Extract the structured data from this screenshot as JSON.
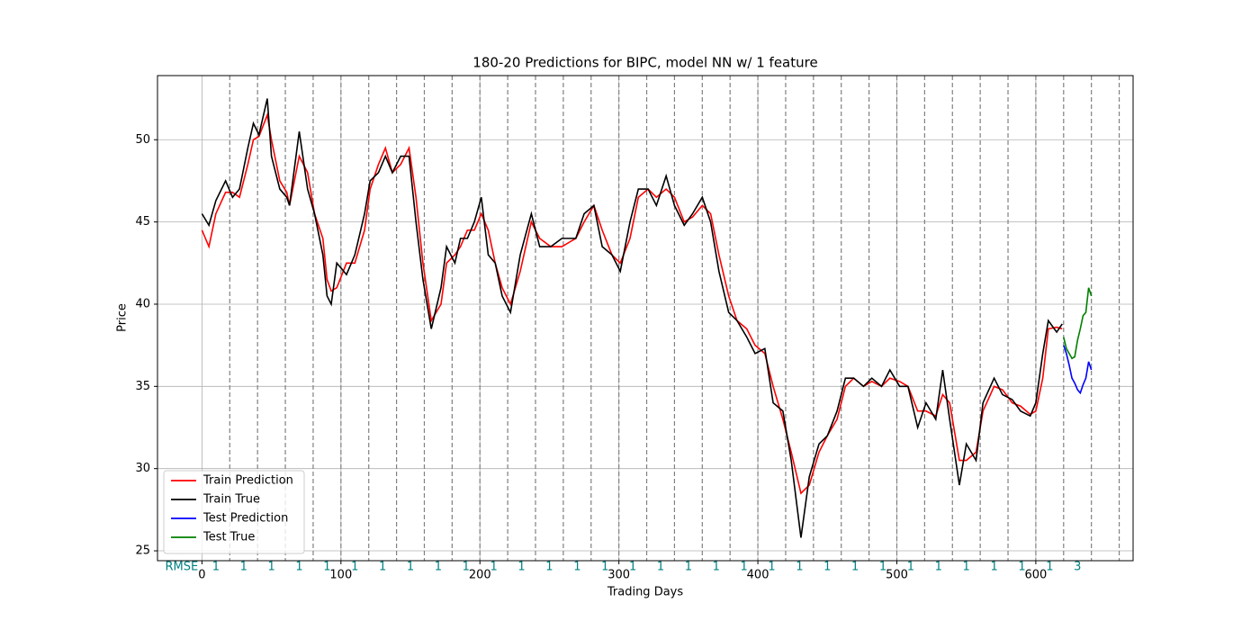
{
  "chart_data": {
    "type": "line",
    "title": "180-20 Predictions for BIPC, model NN w/ 1 feature",
    "xlabel": "Trading Days",
    "ylabel": "Price",
    "xlim": [
      -32,
      670
    ],
    "ylim": [
      24.4,
      53.9
    ],
    "xticks": [
      0,
      100,
      200,
      300,
      400,
      500,
      600
    ],
    "yticks": [
      25,
      30,
      35,
      40,
      45,
      50
    ],
    "grid": true,
    "legend": "lower left",
    "window_lines": [
      20,
      40,
      60,
      80,
      100,
      120,
      140,
      160,
      180,
      200,
      220,
      240,
      260,
      280,
      300,
      320,
      340,
      360,
      380,
      400,
      420,
      440,
      460,
      480,
      500,
      520,
      540,
      560,
      580,
      600,
      620,
      640,
      660
    ],
    "rmse": {
      "label": "RMSE",
      "x": [
        10,
        30,
        50,
        70,
        90,
        110,
        130,
        150,
        170,
        190,
        210,
        230,
        250,
        270,
        290,
        310,
        330,
        350,
        370,
        390,
        410,
        430,
        450,
        470,
        490,
        510,
        530,
        550,
        570,
        590,
        610,
        630
      ],
      "values": [
        1,
        1,
        1,
        1,
        1,
        1,
        1,
        1,
        1,
        1,
        1,
        1,
        1,
        1,
        1,
        1,
        1,
        1,
        1,
        1,
        1,
        1,
        1,
        1,
        1,
        1,
        1,
        1,
        1,
        1,
        1,
        3
      ]
    },
    "series": [
      {
        "name": "Train Prediction",
        "color": "#ff0000",
        "x": [
          0,
          5,
          10,
          17,
          22,
          27,
          33,
          37,
          41,
          47,
          50,
          56,
          61,
          63,
          70,
          76,
          81,
          87,
          90,
          93,
          97,
          104,
          110,
          117,
          121,
          127,
          132,
          137,
          143,
          149,
          154,
          159,
          165,
          172,
          176,
          182,
          186,
          191,
          196,
          201,
          206,
          211,
          216,
          222,
          229,
          237,
          243,
          251,
          259,
          269,
          275,
          282,
          288,
          295,
          301,
          308,
          314,
          321,
          327,
          334,
          340,
          347,
          353,
          360,
          366,
          372,
          379,
          385,
          392,
          398,
          405,
          411,
          418,
          424,
          431,
          437,
          444,
          450,
          457,
          463,
          469,
          476,
          482,
          489,
          495,
          502,
          508,
          515,
          521,
          528,
          533,
          538,
          545,
          550,
          557,
          562,
          570,
          576,
          583,
          589,
          596,
          600,
          605,
          609,
          615,
          619
        ],
        "values": [
          44.5,
          43.5,
          45.5,
          46.8,
          46.8,
          46.5,
          48.5,
          50,
          50.2,
          51.5,
          50,
          47.5,
          46.8,
          46,
          49,
          48,
          45.5,
          44,
          41.5,
          40.8,
          41,
          42.5,
          42.5,
          44.5,
          47,
          48.5,
          49.5,
          48,
          48.5,
          49.5,
          46.5,
          42.5,
          39,
          40,
          42.5,
          43,
          43.5,
          44.5,
          44.5,
          45.5,
          44.5,
          42.5,
          41,
          40,
          42,
          45,
          44,
          43.5,
          43.5,
          44,
          45,
          46,
          44.5,
          43,
          42.5,
          44,
          46.5,
          47,
          46.5,
          47,
          46.5,
          45,
          45.3,
          46,
          45.5,
          43,
          40.5,
          39,
          38.5,
          37.5,
          37,
          35,
          33,
          31,
          28.5,
          29,
          31,
          32,
          33,
          35,
          35.5,
          35,
          35.3,
          35,
          35.5,
          35.3,
          35,
          33.5,
          33.5,
          33.2,
          34.5,
          34,
          30.5,
          30.5,
          31,
          33.5,
          35,
          34.8,
          34,
          33.8,
          33.3,
          33.5,
          35.5,
          38.5,
          38.6,
          38.5
        ]
      },
      {
        "name": "Train True",
        "color": "#000000",
        "x": [
          0,
          5,
          10,
          17,
          22,
          27,
          33,
          37,
          41,
          47,
          50,
          56,
          61,
          63,
          70,
          76,
          81,
          87,
          90,
          93,
          97,
          104,
          110,
          117,
          121,
          127,
          132,
          137,
          143,
          149,
          154,
          159,
          165,
          172,
          176,
          182,
          186,
          191,
          196,
          201,
          206,
          211,
          216,
          222,
          229,
          237,
          243,
          251,
          259,
          269,
          275,
          282,
          288,
          295,
          301,
          308,
          314,
          321,
          327,
          334,
          340,
          347,
          353,
          360,
          366,
          372,
          379,
          385,
          392,
          398,
          405,
          411,
          418,
          424,
          431,
          437,
          444,
          450,
          457,
          463,
          469,
          476,
          482,
          489,
          495,
          502,
          508,
          515,
          521,
          528,
          533,
          538,
          545,
          550,
          557,
          562,
          570,
          576,
          583,
          589,
          596,
          600,
          605,
          609,
          615,
          619
        ],
        "values": [
          45.5,
          44.8,
          46.3,
          47.5,
          46.5,
          47,
          49.5,
          51,
          50.3,
          52.5,
          49,
          47,
          46.5,
          46,
          50.5,
          47,
          45.5,
          43,
          40.5,
          40,
          42.5,
          41.8,
          43,
          45.5,
          47.5,
          48,
          49,
          48,
          49,
          49,
          45,
          41.5,
          38.5,
          41,
          43.5,
          42.5,
          44,
          44,
          45,
          46.5,
          43,
          42.5,
          40.5,
          39.5,
          43,
          45.5,
          43.5,
          43.5,
          44,
          44,
          45.5,
          46,
          43.5,
          43,
          42,
          45,
          47,
          47,
          46,
          47.8,
          46,
          44.8,
          45.5,
          46.5,
          45,
          42,
          39.5,
          39,
          38,
          37,
          37.3,
          34,
          33.5,
          30.5,
          25.8,
          29.5,
          31.5,
          32,
          33.5,
          35.5,
          35.5,
          35,
          35.5,
          35,
          36,
          35,
          35,
          32.5,
          34,
          33,
          36,
          33,
          29,
          31.5,
          30.5,
          34,
          35.5,
          34.5,
          34.2,
          33.5,
          33.2,
          34,
          37,
          39,
          38.3,
          38.8
        ]
      },
      {
        "name": "Test Prediction",
        "color": "#0000ff",
        "x": [
          620,
          622,
          624,
          626,
          628,
          630,
          632,
          634,
          636,
          638,
          640
        ],
        "values": [
          37.5,
          37,
          36.3,
          35.5,
          35.2,
          34.8,
          34.6,
          35.1,
          35.5,
          36.5,
          36
        ]
      },
      {
        "name": "Test True",
        "color": "#008000",
        "x": [
          620,
          622,
          624,
          626,
          628,
          630,
          632,
          634,
          636,
          638,
          640
        ],
        "values": [
          38,
          37.3,
          37,
          36.7,
          36.8,
          37.8,
          38.5,
          39.3,
          39.5,
          41,
          40.5
        ]
      }
    ]
  }
}
